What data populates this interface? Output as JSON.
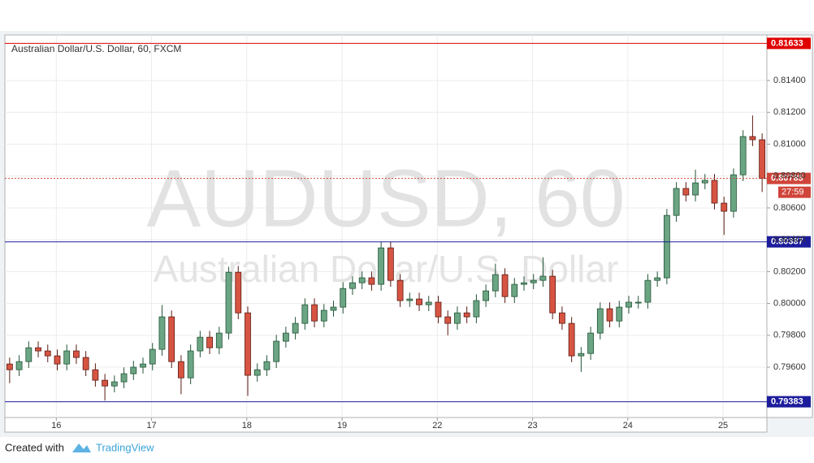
{
  "chart_data": {
    "type": "candlestick",
    "title": "Australian Dollar/U.S. Dollar, 60, FXCM",
    "watermark": {
      "symbol": "AUDUSD, 60",
      "name": "Australian Dollar/U.S. Dollar"
    },
    "countdown": "27:59",
    "up_color": "#6ba583",
    "up_border": "#225437",
    "down_color": "#d75442",
    "down_border": "#5b1a13",
    "open": [
      0.7962,
      0.79584,
      0.79635,
      0.79722,
      0.79702,
      0.79671,
      0.7962,
      0.79702,
      0.79661,
      0.79584,
      0.79518,
      0.79482,
      0.79508,
      0.79559,
      0.796,
      0.7962,
      0.79712,
      0.79916,
      0.79635,
      0.79533,
      0.79702,
      0.79788,
      0.79722,
      0.79814,
      0.80196,
      0.79941,
      0.79549,
      0.79584,
      0.79635,
      0.79763,
      0.79814,
      0.79875,
      0.79992,
      0.7989,
      0.79957,
      0.79977,
      0.80094,
      0.8013,
      0.80161,
      0.8012,
      0.80349,
      0.80145,
      0.80018,
      0.80028,
      0.79992,
      0.80008,
      0.79916,
      0.79875,
      0.79941,
      0.79916,
      0.80018,
      0.80079,
      0.80181,
      0.80043,
      0.8012,
      0.8013,
      0.80145,
      0.80171,
      0.79941,
      0.79875,
      0.79671,
      0.79686,
      0.79814,
      0.79967,
      0.7989,
      0.79977,
      0.80008,
      0.80008,
      0.80145,
      0.80161,
      0.80553,
      0.80722,
      0.80681,
      0.80757,
      0.80773,
      0.8063,
      0.80579,
      0.80808,
      0.81048,
      0.81028
    ],
    "high": [
      0.7966,
      0.79675,
      0.79762,
      0.79762,
      0.79742,
      0.79711,
      0.79742,
      0.79742,
      0.79701,
      0.79624,
      0.79558,
      0.79548,
      0.79599,
      0.7964,
      0.7966,
      0.79752,
      0.7999,
      0.79956,
      0.79675,
      0.79742,
      0.79828,
      0.79828,
      0.79854,
      0.8023,
      0.80236,
      0.79981,
      0.79624,
      0.79675,
      0.79803,
      0.79854,
      0.79915,
      0.80032,
      0.80032,
      0.79997,
      0.80017,
      0.80134,
      0.8017,
      0.80201,
      0.80201,
      0.80389,
      0.80389,
      0.80185,
      0.80068,
      0.80068,
      0.80048,
      0.80048,
      0.79956,
      0.79981,
      0.79981,
      0.80058,
      0.80119,
      0.8025,
      0.80221,
      0.8016,
      0.8017,
      0.80185,
      0.8029,
      0.80211,
      0.79981,
      0.79915,
      0.79726,
      0.79854,
      0.80007,
      0.80007,
      0.80017,
      0.80048,
      0.80048,
      0.80185,
      0.80201,
      0.80593,
      0.80762,
      0.80762,
      0.8084,
      0.80813,
      0.80813,
      0.8067,
      0.80848,
      0.81088,
      0.8118,
      0.81068
    ],
    "low": [
      0.795,
      0.79544,
      0.79595,
      0.79662,
      0.79631,
      0.7958,
      0.7958,
      0.79621,
      0.79544,
      0.79478,
      0.7939,
      0.79442,
      0.79468,
      0.79519,
      0.7956,
      0.7958,
      0.79672,
      0.79595,
      0.7943,
      0.79493,
      0.79662,
      0.79682,
      0.79682,
      0.79774,
      0.79901,
      0.7942,
      0.79509,
      0.79544,
      0.79595,
      0.79723,
      0.79774,
      0.79835,
      0.7985,
      0.7985,
      0.79917,
      0.79937,
      0.80054,
      0.8009,
      0.8008,
      0.8008,
      0.80105,
      0.79978,
      0.79978,
      0.79952,
      0.79952,
      0.79876,
      0.798,
      0.79835,
      0.79876,
      0.79876,
      0.79978,
      0.80039,
      0.80003,
      0.80003,
      0.8008,
      0.8009,
      0.80105,
      0.79901,
      0.79835,
      0.79631,
      0.7957,
      0.79646,
      0.79774,
      0.7985,
      0.7985,
      0.79937,
      0.79968,
      0.79968,
      0.80105,
      0.80121,
      0.80513,
      0.80641,
      0.80641,
      0.80717,
      0.8059,
      0.8043,
      0.80539,
      0.80768,
      0.80988,
      0.807
    ],
    "close": [
      0.79584,
      0.79635,
      0.79722,
      0.79702,
      0.79671,
      0.7962,
      0.79702,
      0.79661,
      0.79584,
      0.79518,
      0.79482,
      0.79508,
      0.79559,
      0.796,
      0.7962,
      0.79712,
      0.79916,
      0.79635,
      0.79533,
      0.79702,
      0.79788,
      0.79722,
      0.79814,
      0.80196,
      0.79941,
      0.79549,
      0.79584,
      0.79635,
      0.79763,
      0.79814,
      0.79875,
      0.79992,
      0.7989,
      0.79957,
      0.79977,
      0.80094,
      0.8013,
      0.80161,
      0.8012,
      0.80349,
      0.80145,
      0.80018,
      0.80028,
      0.79992,
      0.80008,
      0.79916,
      0.79875,
      0.79941,
      0.79916,
      0.80018,
      0.80079,
      0.80181,
      0.80043,
      0.8012,
      0.8013,
      0.80145,
      0.80171,
      0.79941,
      0.79875,
      0.79671,
      0.79686,
      0.79814,
      0.79967,
      0.7989,
      0.79977,
      0.80008,
      0.80008,
      0.80145,
      0.80161,
      0.80553,
      0.80722,
      0.80681,
      0.80757,
      0.80773,
      0.8063,
      0.80579,
      0.80808,
      0.81048,
      0.81028,
      0.80785
    ],
    "xlim": [
      0,
      80
    ],
    "xticks": [
      {
        "value": 5.4,
        "label": "16"
      },
      {
        "value": 15.4,
        "label": "17"
      },
      {
        "value": 25.4,
        "label": "18"
      },
      {
        "value": 35.4,
        "label": "19"
      },
      {
        "value": 45.4,
        "label": "22"
      },
      {
        "value": 55.4,
        "label": "23"
      },
      {
        "value": 65.4,
        "label": "24"
      },
      {
        "value": 75.4,
        "label": "25"
      }
    ],
    "ylim": [
      0.79284,
      0.81686
    ],
    "yticks": [
      {
        "value": 0.796,
        "label": "0.79600"
      },
      {
        "value": 0.798,
        "label": "0.79800"
      },
      {
        "value": 0.8,
        "label": "0.80000"
      },
      {
        "value": 0.802,
        "label": "0.80200"
      },
      {
        "value": 0.804,
        "label": "0.80400"
      },
      {
        "value": 0.806,
        "label": "0.80600"
      },
      {
        "value": 0.808,
        "label": "0.80800"
      },
      {
        "value": 0.81,
        "label": "0.81000"
      },
      {
        "value": 0.812,
        "label": "0.81200"
      },
      {
        "value": 0.814,
        "label": "0.81400"
      }
    ],
    "grid": true,
    "price_lines": [
      {
        "value": 0.81633,
        "color": "#e00000",
        "dashed": false
      },
      {
        "value": 0.80785,
        "color": "#d0453a",
        "dashed": true
      },
      {
        "value": 0.80387,
        "color": "#1c1c9c",
        "dashed": false
      },
      {
        "value": 0.79383,
        "color": "#1c1c9c",
        "dashed": false
      }
    ]
  },
  "footer": {
    "text": "Created with",
    "brand": "TradingView"
  }
}
